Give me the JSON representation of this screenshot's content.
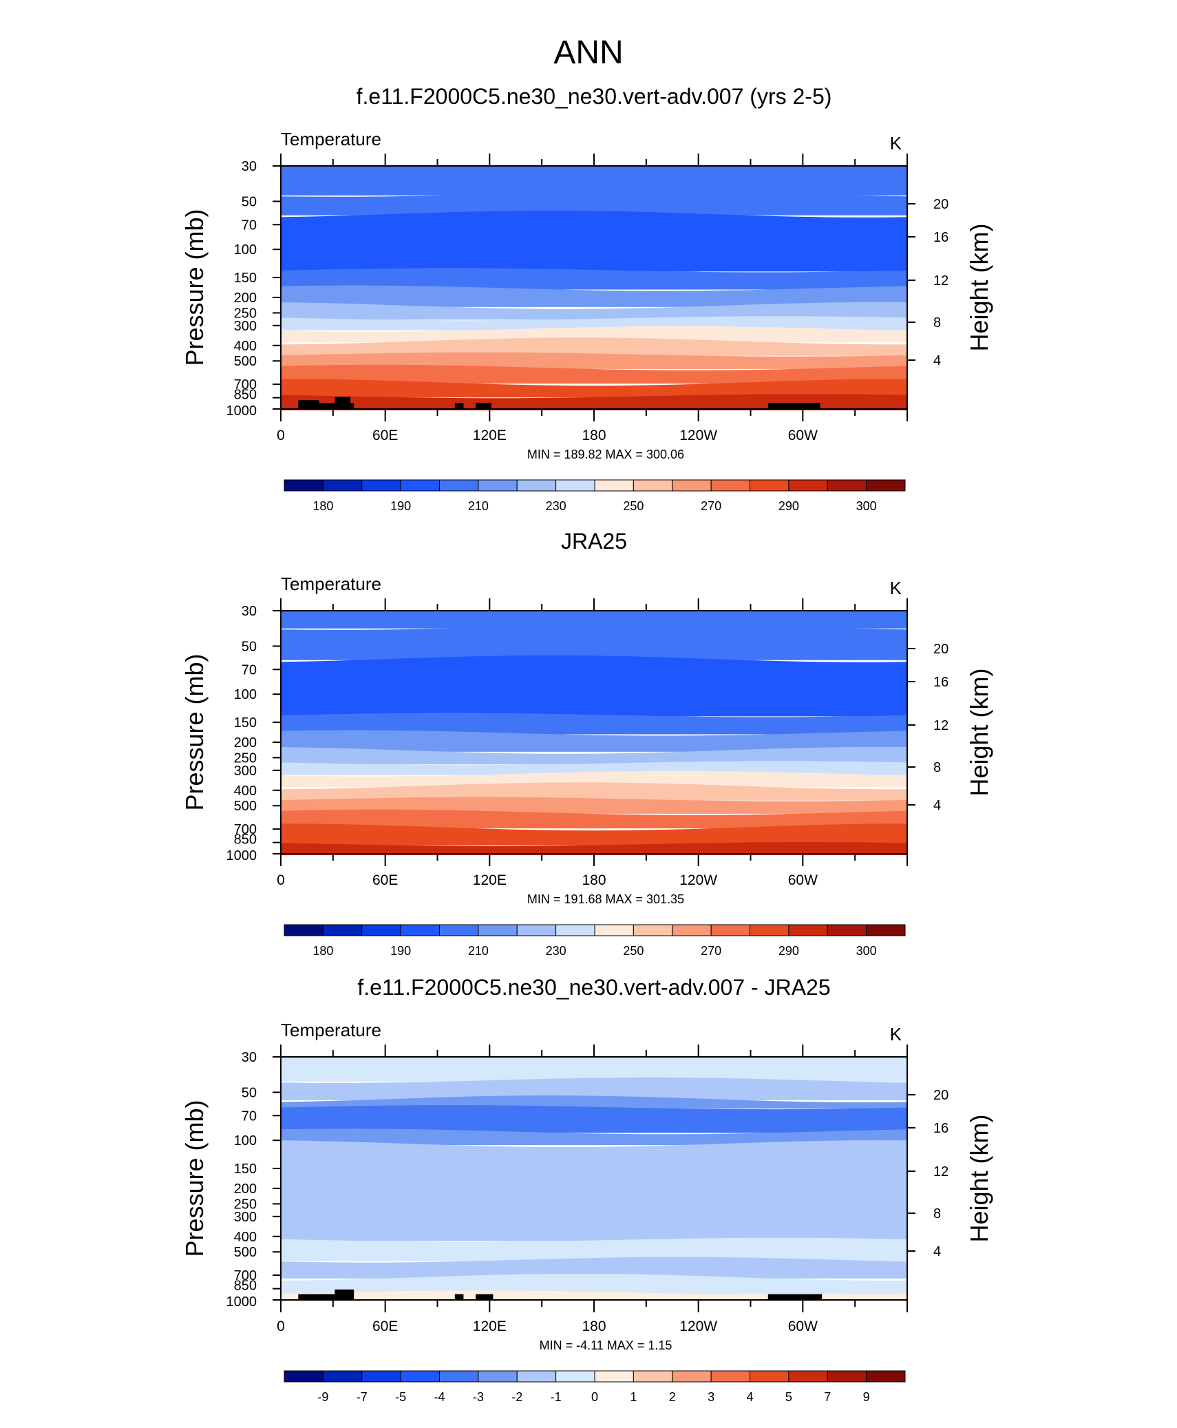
{
  "page_title": "ANN",
  "colors": {
    "model_obs_scale": [
      "#000b80",
      "#0023b8",
      "#0a3de8",
      "#1f57ff",
      "#4175f7",
      "#7099f3",
      "#a3c0f7",
      "#cde0fb",
      "#fde9d9",
      "#fcc5aa",
      "#f99a78",
      "#f46e48",
      "#e84b1e",
      "#cc2a0e",
      "#a8150a",
      "#7d0a05"
    ],
    "diff_scale": [
      "#000b80",
      "#0023b8",
      "#0a3de8",
      "#1f57ff",
      "#4175f7",
      "#7099f3",
      "#adc8f8",
      "#d6e8fc",
      "#fdeee0",
      "#fcc5aa",
      "#f99a78",
      "#f46e48",
      "#e84b1e",
      "#cc2a0e",
      "#a8150a",
      "#7d0a05"
    ],
    "terrain": "#000000"
  },
  "chart_data": [
    {
      "type": "contour",
      "title": "f.e11.F2000C5.ne30_ne30.vert-adv.007 (yrs 2-5)",
      "variable": "Temperature",
      "units": "K",
      "xlabel": "",
      "ylabel": "Pressure (mb)",
      "ylabel_right": "Height (km)",
      "x_range": [
        0,
        360
      ],
      "x_ticks": [
        "0",
        "60E",
        "120E",
        "180",
        "120W",
        "60W"
      ],
      "y_ticks": [
        "30",
        "50",
        "70",
        "100",
        "150",
        "200",
        "250",
        "300",
        "400",
        "500",
        "700",
        "850",
        "1000"
      ],
      "y_right_ticks": [
        "20",
        "16",
        "12",
        "8",
        "4"
      ],
      "y_log_scale": true,
      "y_range": [
        1000,
        30
      ],
      "stats": "MIN = 189.82  MAX = 300.06",
      "min": 189.82,
      "max": 300.06,
      "colorbar_labels": [
        "180",
        "190",
        "210",
        "230",
        "250",
        "270",
        "290",
        "300"
      ],
      "levels": [
        {
          "p_top": 30,
          "p_bottom": 45,
          "color_index": 4
        },
        {
          "p_top": 45,
          "p_bottom": 60,
          "color_index": 4
        },
        {
          "p_top": 60,
          "p_bottom": 135,
          "color_index": 3
        },
        {
          "p_top": 135,
          "p_bottom": 175,
          "color_index": 4
        },
        {
          "p_top": 175,
          "p_bottom": 225,
          "color_index": 5
        },
        {
          "p_top": 225,
          "p_bottom": 270,
          "color_index": 6
        },
        {
          "p_top": 270,
          "p_bottom": 315,
          "color_index": 7
        },
        {
          "p_top": 315,
          "p_bottom": 375,
          "color_index": 8
        },
        {
          "p_top": 375,
          "p_bottom": 455,
          "color_index": 9
        },
        {
          "p_top": 455,
          "p_bottom": 550,
          "color_index": 10
        },
        {
          "p_top": 550,
          "p_bottom": 680,
          "color_index": 11
        },
        {
          "p_top": 680,
          "p_bottom": 830,
          "color_index": 12
        },
        {
          "p_top": 830,
          "p_bottom": 1000,
          "color_index": 13
        }
      ],
      "terrain": [
        [
          10,
          22,
          880
        ],
        [
          22,
          31,
          920
        ],
        [
          31,
          40,
          840
        ],
        [
          40,
          42,
          920
        ],
        [
          100,
          105,
          915
        ],
        [
          112,
          121,
          915
        ],
        [
          280,
          310,
          915
        ]
      ]
    },
    {
      "type": "contour",
      "title": "JRA25",
      "variable": "Temperature",
      "units": "K",
      "xlabel": "",
      "ylabel": "Pressure (mb)",
      "ylabel_right": "Height (km)",
      "x_range": [
        0,
        360
      ],
      "x_ticks": [
        "0",
        "60E",
        "120E",
        "180",
        "120W",
        "60W"
      ],
      "y_ticks": [
        "30",
        "50",
        "70",
        "100",
        "150",
        "200",
        "250",
        "300",
        "400",
        "500",
        "700",
        "850",
        "1000"
      ],
      "y_right_ticks": [
        "20",
        "16",
        "12",
        "8",
        "4"
      ],
      "y_log_scale": true,
      "y_range": [
        1000,
        30
      ],
      "stats": "MIN = 191.68  MAX = 301.35",
      "min": 191.68,
      "max": 301.35,
      "colorbar_labels": [
        "180",
        "190",
        "210",
        "230",
        "250",
        "270",
        "290",
        "300"
      ],
      "levels": [
        {
          "p_top": 30,
          "p_bottom": 38,
          "color_index": 4
        },
        {
          "p_top": 38,
          "p_bottom": 60,
          "color_index": 4
        },
        {
          "p_top": 60,
          "p_bottom": 135,
          "color_index": 3
        },
        {
          "p_top": 135,
          "p_bottom": 175,
          "color_index": 4
        },
        {
          "p_top": 175,
          "p_bottom": 225,
          "color_index": 5
        },
        {
          "p_top": 225,
          "p_bottom": 270,
          "color_index": 6
        },
        {
          "p_top": 270,
          "p_bottom": 315,
          "color_index": 7
        },
        {
          "p_top": 315,
          "p_bottom": 375,
          "color_index": 8
        },
        {
          "p_top": 375,
          "p_bottom": 455,
          "color_index": 9
        },
        {
          "p_top": 455,
          "p_bottom": 550,
          "color_index": 10
        },
        {
          "p_top": 550,
          "p_bottom": 680,
          "color_index": 11
        },
        {
          "p_top": 680,
          "p_bottom": 870,
          "color_index": 12
        },
        {
          "p_top": 870,
          "p_bottom": 1000,
          "color_index": 13
        }
      ],
      "terrain": []
    },
    {
      "type": "contour",
      "title": "f.e11.F2000C5.ne30_ne30.vert-adv.007 - JRA25",
      "variable": "Temperature",
      "units": "K",
      "xlabel": "",
      "ylabel": "Pressure (mb)",
      "ylabel_right": "Height (km)",
      "x_range": [
        0,
        360
      ],
      "x_ticks": [
        "0",
        "60E",
        "120E",
        "180",
        "120W",
        "60W"
      ],
      "y_ticks": [
        "30",
        "50",
        "70",
        "100",
        "150",
        "200",
        "250",
        "300",
        "400",
        "500",
        "700",
        "850",
        "1000"
      ],
      "y_right_ticks": [
        "20",
        "16",
        "12",
        "8",
        "4"
      ],
      "y_log_scale": true,
      "y_range": [
        1000,
        30
      ],
      "stats": "MIN =  -4.11  MAX =   1.15",
      "min": -4.11,
      "max": 1.15,
      "colorbar_labels": [
        "-9",
        "-7",
        "-5",
        "-4",
        "-3",
        "-2",
        "-1",
        "0",
        "1",
        "2",
        "3",
        "4",
        "5",
        "7",
        "9"
      ],
      "levels": [
        {
          "p_top": 30,
          "p_bottom": 42,
          "color_index": 7
        },
        {
          "p_top": 42,
          "p_bottom": 55,
          "color_index": 6
        },
        {
          "p_top": 55,
          "p_bottom": 62,
          "color_index": 5
        },
        {
          "p_top": 62,
          "p_bottom": 88,
          "color_index": 4
        },
        {
          "p_top": 88,
          "p_bottom": 105,
          "color_index": 5
        },
        {
          "p_top": 105,
          "p_bottom": 420,
          "color_index": 6
        },
        {
          "p_top": 420,
          "p_bottom": 560,
          "color_index": 7
        },
        {
          "p_top": 560,
          "p_bottom": 720,
          "color_index": 6
        },
        {
          "p_top": 720,
          "p_bottom": 900,
          "color_index": 7
        },
        {
          "p_top": 900,
          "p_bottom": 1000,
          "color_index": 8
        }
      ],
      "terrain": [
        [
          10,
          22,
          920
        ],
        [
          22,
          31,
          920
        ],
        [
          31,
          42,
          860
        ],
        [
          100,
          105,
          920
        ],
        [
          112,
          122,
          920
        ],
        [
          280,
          311,
          920
        ]
      ]
    }
  ]
}
